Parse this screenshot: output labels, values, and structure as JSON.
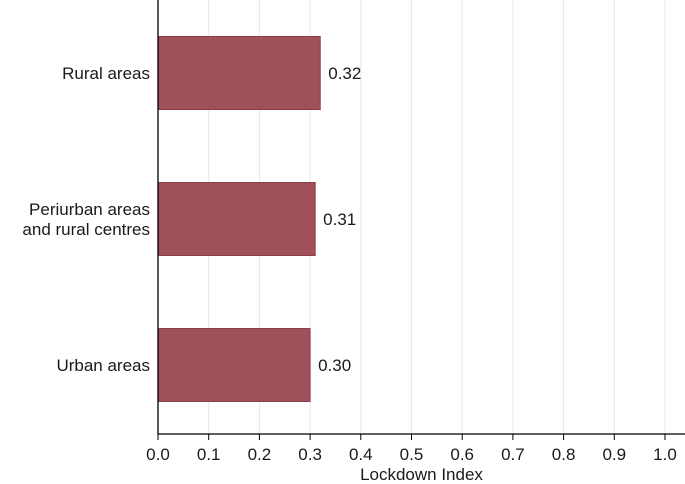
{
  "chart_data": {
    "type": "bar",
    "orientation": "horizontal",
    "categories": [
      [
        "Rural areas"
      ],
      [
        "Periurban areas",
        "and rural centres"
      ],
      [
        "Urban areas"
      ]
    ],
    "values": [
      0.32,
      0.31,
      0.3
    ],
    "value_labels": [
      "0.32",
      "0.31",
      "0.30"
    ],
    "xlabel": "Lockdown Index",
    "ylabel": "",
    "xlim": [
      0.0,
      1.0
    ],
    "xticks": [
      0.0,
      0.1,
      0.2,
      0.3,
      0.4,
      0.5,
      0.6,
      0.7,
      0.8,
      0.9,
      1.0
    ],
    "xtick_labels": [
      "0.0",
      "0.1",
      "0.2",
      "0.3",
      "0.4",
      "0.5",
      "0.6",
      "0.7",
      "0.8",
      "0.9",
      "1.0"
    ],
    "grid": "vertical",
    "bar_color": "#a0505a",
    "bar_edge_color": "#8c3f49",
    "grid_color": "#e8e8e8",
    "axis_color": "#000000"
  }
}
